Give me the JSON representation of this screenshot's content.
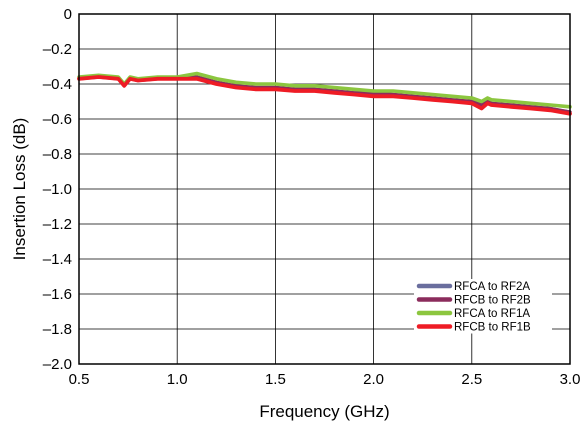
{
  "chart_data": {
    "type": "line",
    "xlabel": "Frequency (GHz)",
    "ylabel": "Insertion Loss (dB)",
    "xlim": [
      0.5,
      3.0
    ],
    "ylim": [
      -2.0,
      0
    ],
    "x_ticks": [
      0.5,
      1.0,
      1.5,
      2.0,
      2.5,
      3.0
    ],
    "x_tick_labels": [
      "0.5",
      "1.0",
      "1.5",
      "2.0",
      "2.5",
      "3.0"
    ],
    "y_ticks": [
      0,
      -0.2,
      -0.4,
      -0.6,
      -0.8,
      -1.0,
      -1.2,
      -1.4,
      -1.6,
      -1.8,
      -2.0
    ],
    "y_tick_labels": [
      "0",
      "–0.2",
      "–0.4",
      "–0.6",
      "–0.8",
      "–1.0",
      "–1.2",
      "–1.4",
      "–1.6",
      "–1.8",
      "–2.0"
    ],
    "grid": true,
    "legend_position": "bottom-right",
    "series": [
      {
        "name": "RFCA to RF2A",
        "color": "#6a6e9e",
        "x": [
          0.5,
          0.6,
          0.7,
          0.73,
          0.76,
          0.8,
          0.9,
          1.0,
          1.1,
          1.2,
          1.3,
          1.4,
          1.5,
          1.6,
          1.7,
          1.8,
          1.9,
          2.0,
          2.1,
          2.2,
          2.3,
          2.4,
          2.5,
          2.55,
          2.58,
          2.6,
          2.7,
          2.8,
          2.9,
          3.0
        ],
        "y": [
          -0.37,
          -0.36,
          -0.37,
          -0.41,
          -0.37,
          -0.38,
          -0.37,
          -0.37,
          -0.36,
          -0.39,
          -0.41,
          -0.42,
          -0.42,
          -0.43,
          -0.43,
          -0.44,
          -0.45,
          -0.45,
          -0.46,
          -0.47,
          -0.48,
          -0.49,
          -0.5,
          -0.52,
          -0.5,
          -0.51,
          -0.52,
          -0.53,
          -0.54,
          -0.56
        ]
      },
      {
        "name": "RFCB to RF2B",
        "color": "#8b2c5c",
        "x": [
          0.5,
          0.6,
          0.7,
          0.73,
          0.76,
          0.8,
          0.9,
          1.0,
          1.1,
          1.2,
          1.3,
          1.4,
          1.5,
          1.6,
          1.7,
          1.8,
          1.9,
          2.0,
          2.1,
          2.2,
          2.3,
          2.4,
          2.5,
          2.55,
          2.58,
          2.6,
          2.7,
          2.8,
          2.9,
          3.0
        ],
        "y": [
          -0.37,
          -0.36,
          -0.37,
          -0.41,
          -0.37,
          -0.38,
          -0.37,
          -0.37,
          -0.36,
          -0.39,
          -0.41,
          -0.42,
          -0.42,
          -0.43,
          -0.43,
          -0.44,
          -0.45,
          -0.45,
          -0.46,
          -0.47,
          -0.48,
          -0.49,
          -0.5,
          -0.52,
          -0.5,
          -0.51,
          -0.52,
          -0.53,
          -0.54,
          -0.56
        ]
      },
      {
        "name": "RFCA to RF1A",
        "color": "#8cc63f",
        "x": [
          0.5,
          0.6,
          0.7,
          0.73,
          0.76,
          0.8,
          0.9,
          1.0,
          1.1,
          1.2,
          1.3,
          1.4,
          1.5,
          1.6,
          1.7,
          1.8,
          1.9,
          2.0,
          2.1,
          2.2,
          2.3,
          2.4,
          2.5,
          2.55,
          2.58,
          2.6,
          2.7,
          2.8,
          2.9,
          3.0
        ],
        "y": [
          -0.36,
          -0.35,
          -0.36,
          -0.4,
          -0.36,
          -0.37,
          -0.36,
          -0.36,
          -0.34,
          -0.37,
          -0.39,
          -0.4,
          -0.4,
          -0.41,
          -0.41,
          -0.42,
          -0.43,
          -0.44,
          -0.44,
          -0.45,
          -0.46,
          -0.47,
          -0.48,
          -0.5,
          -0.48,
          -0.49,
          -0.5,
          -0.51,
          -0.52,
          -0.53
        ]
      },
      {
        "name": "RFCB to RF1B",
        "color": "#ee1c25",
        "x": [
          0.5,
          0.6,
          0.7,
          0.73,
          0.76,
          0.8,
          0.9,
          1.0,
          1.1,
          1.2,
          1.3,
          1.4,
          1.5,
          1.6,
          1.7,
          1.8,
          1.9,
          2.0,
          2.1,
          2.2,
          2.3,
          2.4,
          2.5,
          2.55,
          2.58,
          2.6,
          2.7,
          2.8,
          2.9,
          3.0
        ],
        "y": [
          -0.37,
          -0.36,
          -0.37,
          -0.41,
          -0.37,
          -0.38,
          -0.37,
          -0.37,
          -0.37,
          -0.4,
          -0.42,
          -0.43,
          -0.43,
          -0.44,
          -0.44,
          -0.45,
          -0.46,
          -0.47,
          -0.47,
          -0.48,
          -0.49,
          -0.5,
          -0.51,
          -0.54,
          -0.51,
          -0.52,
          -0.53,
          -0.54,
          -0.55,
          -0.57
        ]
      }
    ]
  }
}
